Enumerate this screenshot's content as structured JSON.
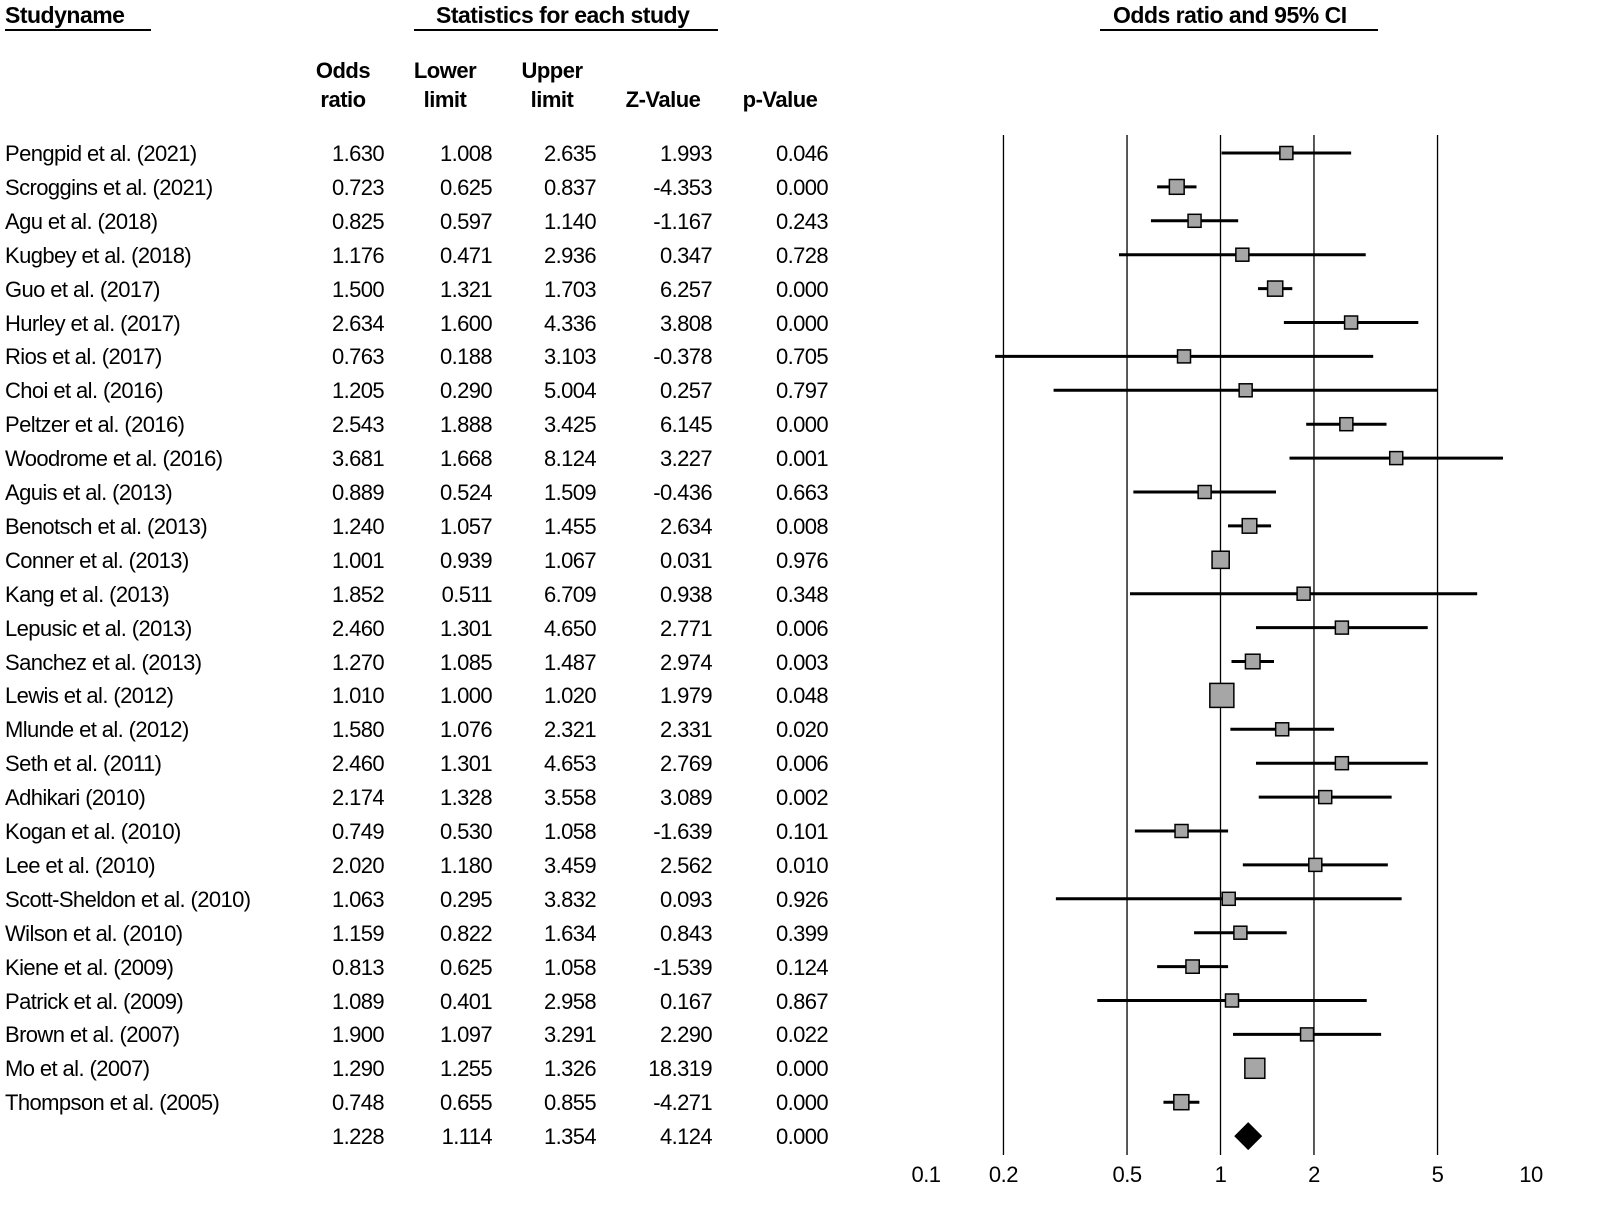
{
  "headers": {
    "study_name": "Studyname",
    "statistics": "Statistics for each study",
    "ci": "Odds ratio and 95% CI"
  },
  "columns": {
    "or_line1": "Odds",
    "or_line2": "ratio",
    "lower_line1": "Lower",
    "lower_line2": "limit",
    "upper_line1": "Upper",
    "upper_line2": "limit",
    "z": "Z-Value",
    "p": "p-Value"
  },
  "studies": [
    {
      "name": "Pengpid et al. (2021)",
      "or": "1.630",
      "lower": "1.008",
      "upper": "2.635",
      "z": "1.993",
      "p": "0.046"
    },
    {
      "name": "Scroggins et al. (2021)",
      "or": "0.723",
      "lower": "0.625",
      "upper": "0.837",
      "z": "-4.353",
      "p": "0.000"
    },
    {
      "name": "Agu et al. (2018)",
      "or": "0.825",
      "lower": "0.597",
      "upper": "1.140",
      "z": "-1.167",
      "p": "0.243"
    },
    {
      "name": "Kugbey et al. (2018)",
      "or": "1.176",
      "lower": "0.471",
      "upper": "2.936",
      "z": "0.347",
      "p": "0.728"
    },
    {
      "name": "Guo et al. (2017)",
      "or": "1.500",
      "lower": "1.321",
      "upper": "1.703",
      "z": "6.257",
      "p": "0.000"
    },
    {
      "name": "Hurley et al. (2017)",
      "or": "2.634",
      "lower": "1.600",
      "upper": "4.336",
      "z": "3.808",
      "p": "0.000"
    },
    {
      "name": "Rios et al. (2017)",
      "or": "0.763",
      "lower": "0.188",
      "upper": "3.103",
      "z": "-0.378",
      "p": "0.705"
    },
    {
      "name": "Choi et al. (2016)",
      "or": "1.205",
      "lower": "0.290",
      "upper": "5.004",
      "z": "0.257",
      "p": "0.797"
    },
    {
      "name": "Peltzer et al. (2016)",
      "or": "2.543",
      "lower": "1.888",
      "upper": "3.425",
      "z": "6.145",
      "p": "0.000"
    },
    {
      "name": "Woodrome et al. (2016)",
      "or": "3.681",
      "lower": "1.668",
      "upper": "8.124",
      "z": "3.227",
      "p": "0.001"
    },
    {
      "name": "Aguis et al. (2013)",
      "or": "0.889",
      "lower": "0.524",
      "upper": "1.509",
      "z": "-0.436",
      "p": "0.663"
    },
    {
      "name": "Benotsch et al. (2013)",
      "or": "1.240",
      "lower": "1.057",
      "upper": "1.455",
      "z": "2.634",
      "p": "0.008"
    },
    {
      "name": "Conner et al. (2013)",
      "or": "1.001",
      "lower": "0.939",
      "upper": "1.067",
      "z": "0.031",
      "p": "0.976"
    },
    {
      "name": "Kang et al. (2013)",
      "or": "1.852",
      "lower": "0.511",
      "upper": "6.709",
      "z": "0.938",
      "p": "0.348"
    },
    {
      "name": "Lepusic et al. (2013)",
      "or": "2.460",
      "lower": "1.301",
      "upper": "4.650",
      "z": "2.771",
      "p": "0.006"
    },
    {
      "name": "Sanchez et al. (2013)",
      "or": "1.270",
      "lower": "1.085",
      "upper": "1.487",
      "z": "2.974",
      "p": "0.003"
    },
    {
      "name": "Lewis et al. (2012)",
      "or": "1.010",
      "lower": "1.000",
      "upper": "1.020",
      "z": "1.979",
      "p": "0.048"
    },
    {
      "name": "Mlunde et al. (2012)",
      "or": "1.580",
      "lower": "1.076",
      "upper": "2.321",
      "z": "2.331",
      "p": "0.020"
    },
    {
      "name": "Seth et al. (2011)",
      "or": "2.460",
      "lower": "1.301",
      "upper": "4.653",
      "z": "2.769",
      "p": "0.006"
    },
    {
      "name": "Adhikari (2010)",
      "or": "2.174",
      "lower": "1.328",
      "upper": "3.558",
      "z": "3.089",
      "p": "0.002"
    },
    {
      "name": "Kogan et al. (2010)",
      "or": "0.749",
      "lower": "0.530",
      "upper": "1.058",
      "z": "-1.639",
      "p": "0.101"
    },
    {
      "name": "Lee et al. (2010)",
      "or": "2.020",
      "lower": "1.180",
      "upper": "3.459",
      "z": "2.562",
      "p": "0.010"
    },
    {
      "name": "Scott-Sheldon et al. (2010)",
      "or": "1.063",
      "lower": "0.295",
      "upper": "3.832",
      "z": "0.093",
      "p": "0.926"
    },
    {
      "name": "Wilson et al. (2010)",
      "or": "1.159",
      "lower": "0.822",
      "upper": "1.634",
      "z": "0.843",
      "p": "0.399"
    },
    {
      "name": "Kiene et al. (2009)",
      "or": "0.813",
      "lower": "0.625",
      "upper": "1.058",
      "z": "-1.539",
      "p": "0.124"
    },
    {
      "name": "Patrick et al. (2009)",
      "or": "1.089",
      "lower": "0.401",
      "upper": "2.958",
      "z": "0.167",
      "p": "0.867"
    },
    {
      "name": "Brown et al. (2007)",
      "or": "1.900",
      "lower": "1.097",
      "upper": "3.291",
      "z": "2.290",
      "p": "0.022"
    },
    {
      "name": "Mo et al. (2007)",
      "or": "1.290",
      "lower": "1.255",
      "upper": "1.326",
      "z": "18.319",
      "p": "0.000"
    },
    {
      "name": "Thompson et al. (2005)",
      "or": "0.748",
      "lower": "0.655",
      "upper": "0.855",
      "z": "-4.271",
      "p": "0.000"
    }
  ],
  "summary": {
    "or": "1.228",
    "lower": "1.114",
    "upper": "1.354",
    "z": "4.124",
    "p": "0.000"
  },
  "chart_data": {
    "type": "forest",
    "title": "Odds ratio and 95% CI",
    "x_scale": "log",
    "xlim": [
      0.1,
      10
    ],
    "ticks": [
      "0.1",
      "0.2",
      "0.5",
      "1",
      "2",
      "5",
      "10"
    ],
    "gridlines": [
      0.2,
      0.5,
      1,
      2,
      5
    ],
    "marker_color": "#a6a6a6",
    "points": [
      {
        "study": "Pengpid et al. (2021)",
        "or": 1.63,
        "lower": 1.008,
        "upper": 2.635
      },
      {
        "study": "Scroggins et al. (2021)",
        "or": 0.723,
        "lower": 0.625,
        "upper": 0.837
      },
      {
        "study": "Agu et al. (2018)",
        "or": 0.825,
        "lower": 0.597,
        "upper": 1.14
      },
      {
        "study": "Kugbey et al. (2018)",
        "or": 1.176,
        "lower": 0.471,
        "upper": 2.936
      },
      {
        "study": "Guo et al. (2017)",
        "or": 1.5,
        "lower": 1.321,
        "upper": 1.703
      },
      {
        "study": "Hurley et al. (2017)",
        "or": 2.634,
        "lower": 1.6,
        "upper": 4.336
      },
      {
        "study": "Rios et al. (2017)",
        "or": 0.763,
        "lower": 0.188,
        "upper": 3.103
      },
      {
        "study": "Choi et al. (2016)",
        "or": 1.205,
        "lower": 0.29,
        "upper": 5.004
      },
      {
        "study": "Peltzer et al. (2016)",
        "or": 2.543,
        "lower": 1.888,
        "upper": 3.425
      },
      {
        "study": "Woodrome et al. (2016)",
        "or": 3.681,
        "lower": 1.668,
        "upper": 8.124
      },
      {
        "study": "Aguis et al. (2013)",
        "or": 0.889,
        "lower": 0.524,
        "upper": 1.509
      },
      {
        "study": "Benotsch et al. (2013)",
        "or": 1.24,
        "lower": 1.057,
        "upper": 1.455
      },
      {
        "study": "Conner et al. (2013)",
        "or": 1.001,
        "lower": 0.939,
        "upper": 1.067
      },
      {
        "study": "Kang et al. (2013)",
        "or": 1.852,
        "lower": 0.511,
        "upper": 6.709
      },
      {
        "study": "Lepusic et al. (2013)",
        "or": 2.46,
        "lower": 1.301,
        "upper": 4.65
      },
      {
        "study": "Sanchez et al. (2013)",
        "or": 1.27,
        "lower": 1.085,
        "upper": 1.487
      },
      {
        "study": "Lewis et al. (2012)",
        "or": 1.01,
        "lower": 1.0,
        "upper": 1.02
      },
      {
        "study": "Mlunde et al. (2012)",
        "or": 1.58,
        "lower": 1.076,
        "upper": 2.321
      },
      {
        "study": "Seth et al. (2011)",
        "or": 2.46,
        "lower": 1.301,
        "upper": 4.653
      },
      {
        "study": "Adhikari (2010)",
        "or": 2.174,
        "lower": 1.328,
        "upper": 3.558
      },
      {
        "study": "Kogan et al. (2010)",
        "or": 0.749,
        "lower": 0.53,
        "upper": 1.058
      },
      {
        "study": "Lee et al. (2010)",
        "or": 2.02,
        "lower": 1.18,
        "upper": 3.459
      },
      {
        "study": "Scott-Sheldon et al. (2010)",
        "or": 1.063,
        "lower": 0.295,
        "upper": 3.832
      },
      {
        "study": "Wilson et al. (2010)",
        "or": 1.159,
        "lower": 0.822,
        "upper": 1.634
      },
      {
        "study": "Kiene et al. (2009)",
        "or": 0.813,
        "lower": 0.625,
        "upper": 1.058
      },
      {
        "study": "Patrick et al. (2009)",
        "or": 1.089,
        "lower": 0.401,
        "upper": 2.958
      },
      {
        "study": "Brown et al. (2007)",
        "or": 1.9,
        "lower": 1.097,
        "upper": 3.291
      },
      {
        "study": "Mo et al. (2007)",
        "or": 1.29,
        "lower": 1.255,
        "upper": 1.326
      },
      {
        "study": "Thompson et al. (2005)",
        "or": 0.748,
        "lower": 0.655,
        "upper": 0.855
      }
    ],
    "summary": {
      "or": 1.228,
      "lower": 1.114,
      "upper": 1.354
    }
  }
}
